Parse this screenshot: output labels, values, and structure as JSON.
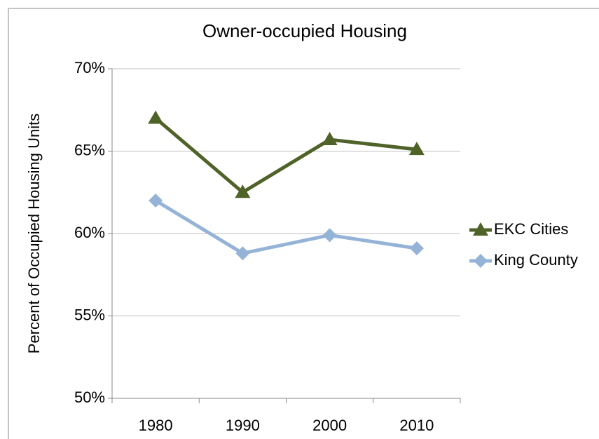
{
  "chart_data": {
    "type": "line",
    "title": "Owner-occupied Housing",
    "y_label": "Percent of Occupied Housing Units",
    "categories": [
      "1980",
      "1990",
      "2000",
      "2010"
    ],
    "series": [
      {
        "name": "EKC Cities",
        "color": "#4f6228",
        "marker": "triangle",
        "values": [
          67.0,
          62.5,
          65.7,
          65.1
        ]
      },
      {
        "name": "King County",
        "color": "#95b3d7",
        "marker": "diamond",
        "values": [
          62.0,
          58.8,
          59.9,
          59.1
        ]
      }
    ],
    "ylim": [
      50,
      70
    ],
    "yticks": [
      {
        "value": 50,
        "label": "50%"
      },
      {
        "value": 55,
        "label": "55%"
      },
      {
        "value": 60,
        "label": "60%"
      },
      {
        "value": 65,
        "label": "65%"
      },
      {
        "value": 70,
        "label": "70%"
      }
    ],
    "grid": true,
    "legend": "right"
  }
}
